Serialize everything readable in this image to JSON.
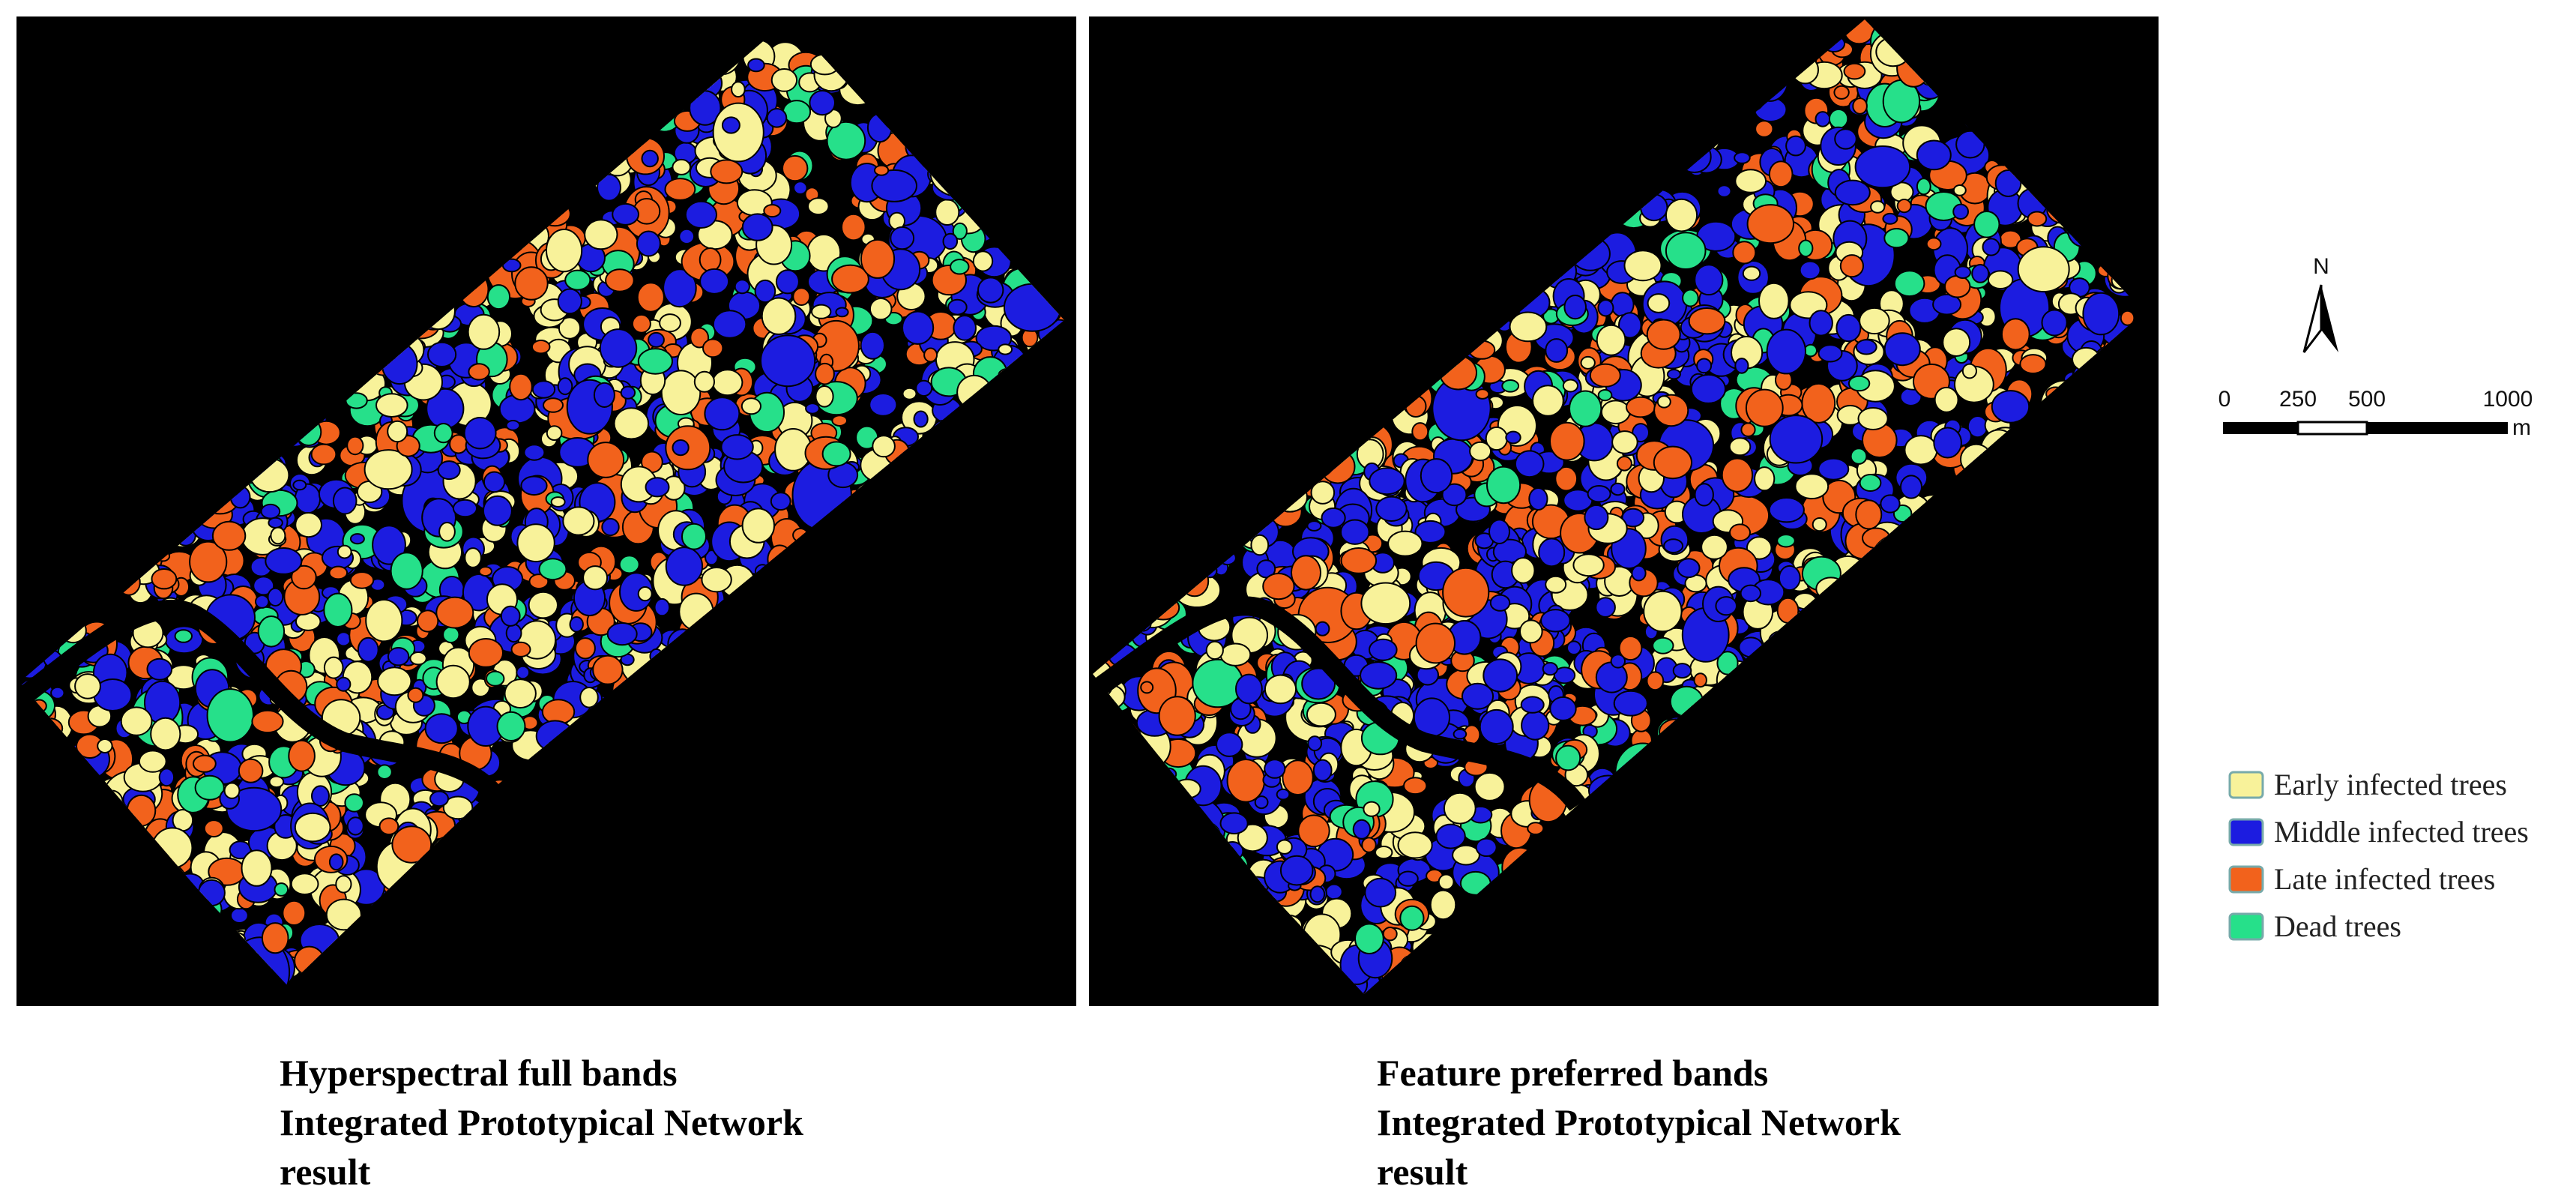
{
  "panels": [
    {
      "caption": [
        "Hyperspectral full bands",
        "Integrated Prototypical Network",
        "result"
      ]
    },
    {
      "caption": [
        "Feature preferred bands",
        "Integrated Prototypical Network",
        "result"
      ]
    }
  ],
  "north_arrow": {
    "label": "N"
  },
  "scale_bar": {
    "labels": [
      "0",
      "250",
      "500",
      "1000"
    ],
    "unit": "m"
  },
  "legend": [
    {
      "label": "Early infected trees",
      "color": "#f8f29a"
    },
    {
      "label": "Middle infected trees",
      "color": "#1c1ce0"
    },
    {
      "label": "Late infected trees",
      "color": "#f2621c"
    },
    {
      "label": "Dead trees",
      "color": "#26e08a"
    }
  ]
}
